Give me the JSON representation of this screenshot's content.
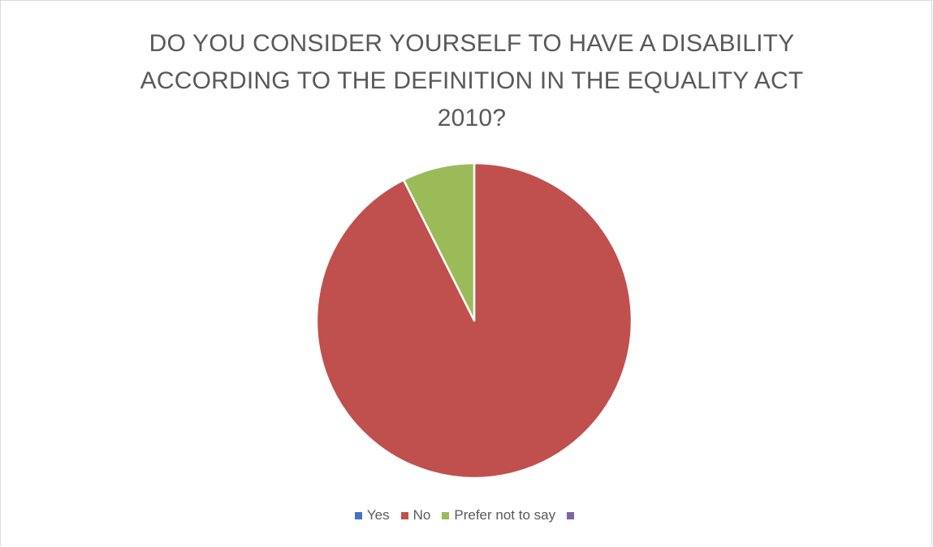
{
  "chart_data": {
    "type": "pie",
    "title": "DO YOU CONSIDER YOURSELF TO HAVE A DISABILITY ACCORDING TO THE DEFINITION IN THE EQUALITY ACT 2010?",
    "categories": [
      "Yes",
      "No",
      "Prefer not to say",
      ""
    ],
    "values": [
      0,
      92.6,
      7.4,
      0
    ],
    "colors": [
      "#4472c4",
      "#c0504d",
      "#9bbb59",
      "#8064a2"
    ],
    "legend_position": "bottom"
  }
}
